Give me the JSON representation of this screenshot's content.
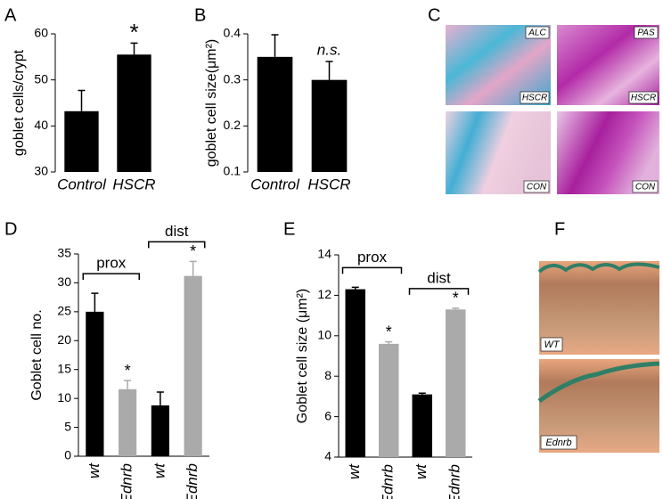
{
  "chart_data": [
    {
      "type": "bar",
      "panel_label": "A",
      "y_label": "goblet cells/crypt",
      "categories": [
        "Control",
        "HSCR"
      ],
      "values": [
        43.2,
        55.5
      ],
      "errors": [
        4.5,
        2.5
      ],
      "colors": [
        "#000000",
        "#000000"
      ],
      "significance": [
        null,
        "*"
      ],
      "ylim": [
        30,
        60
      ],
      "yticks": [
        30,
        40,
        50,
        60
      ]
    },
    {
      "type": "bar",
      "panel_label": "B",
      "y_label": "goblet cell size(μm²)",
      "categories": [
        "Control",
        "HSCR"
      ],
      "values": [
        0.35,
        0.3
      ],
      "errors": [
        0.048,
        0.04
      ],
      "colors": [
        "#000000",
        "#000000"
      ],
      "significance": [
        null,
        "n.s."
      ],
      "ylim": [
        0.1,
        0.4
      ],
      "yticks": [
        0.1,
        0.2,
        0.3,
        0.4
      ]
    },
    {
      "type": "bar",
      "panel_label": "D",
      "y_label": "Goblet cell no.",
      "categories": [
        "wt",
        "Ednrb",
        "wt",
        "Ednrb"
      ],
      "values": [
        25,
        11.6,
        8.8,
        31.2
      ],
      "errors": [
        3.2,
        1.5,
        2.3,
        2.5
      ],
      "colors": [
        "#000000",
        "#aaaaaa",
        "#000000",
        "#aaaaaa"
      ],
      "significance": [
        null,
        "*",
        null,
        "*"
      ],
      "groups": [
        "prox",
        "dist"
      ],
      "ylim": [
        0,
        35
      ],
      "yticks": [
        0,
        5,
        10,
        15,
        20,
        25,
        30,
        35
      ]
    },
    {
      "type": "bar",
      "panel_label": "E",
      "y_label": "Goblet cell size (μm²)",
      "categories": [
        "wt",
        "Ednrb",
        "wt",
        "Ednrb"
      ],
      "values": [
        12.3,
        9.6,
        7.1,
        11.3
      ],
      "errors": [
        0.1,
        0.1,
        0.06,
        0.06
      ],
      "colors": [
        "#000000",
        "#aaaaaa",
        "#000000",
        "#aaaaaa"
      ],
      "significance": [
        null,
        "*",
        null,
        "*"
      ],
      "groups": [
        "prox",
        "dist"
      ],
      "ylim": [
        4,
        14
      ],
      "yticks": [
        4,
        6,
        8,
        10,
        12,
        14
      ]
    }
  ],
  "micrographs": [
    {
      "panel_label": "C",
      "tiles": [
        {
          "stain": "ALC",
          "group": "HSCR"
        },
        {
          "stain": "PAS",
          "group": "HSCR"
        },
        {
          "group": "CON"
        },
        {
          "group": "CON"
        }
      ]
    },
    {
      "panel_label": "F",
      "tiles": [
        {
          "group": "WT"
        },
        {
          "group": "Ednrb"
        }
      ]
    }
  ]
}
